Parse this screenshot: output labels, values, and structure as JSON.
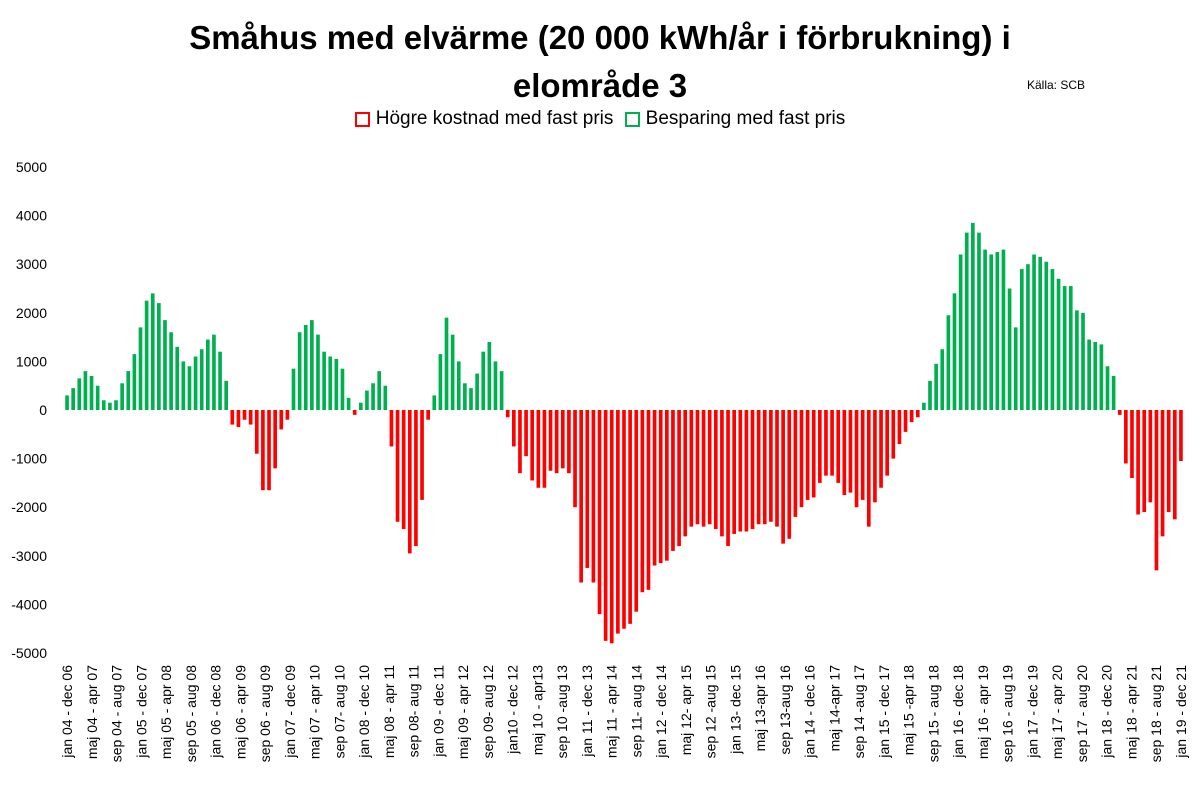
{
  "title_line1": "Småhus med elvärme (20 000 kWh/år i förbrukning) i",
  "title_line2": "elområde 3",
  "source": "Källa: SCB",
  "legend": [
    {
      "label": "Högre kostnad med fast pris",
      "color": "#ff0000"
    },
    {
      "label": "Besparing med fast pris",
      "color": "#00b050"
    }
  ],
  "colors": {
    "negative": "#ff0000",
    "positive": "#00b050"
  },
  "chart_data": {
    "type": "bar",
    "title": "Småhus med elvärme (20 000 kWh/år i förbrukning) i elområde 3",
    "ylim": [
      -5000,
      5000
    ],
    "yticks": [
      5000,
      4000,
      3000,
      2000,
      1000,
      0,
      -1000,
      -2000,
      -3000,
      -4000,
      -5000
    ],
    "grid": false,
    "legend_position": "top",
    "xtick_labels": [
      "jan 04 - dec 06",
      "maj 04 - apr 07",
      "sep 04 - aug 07",
      "jan 05 - dec 07",
      "maj 05 - apr 08",
      "sep 05 - aug 08",
      "jan 06 - dec 08",
      "maj 06 - apr 09",
      "sep 06 - aug 09",
      "jan 07 - dec 09",
      "maj 07 - apr 10",
      "sep 07- aug 10",
      "jan 08 - dec 10",
      "maj 08 - apr 11",
      "sep 08- aug 11",
      "jan 09 - dec 11",
      "maj 09 - apr 12",
      "sep 09- aug 12",
      "jan10 - dec 12",
      "maj 10 - apr13",
      "sep 10 -aug 13",
      "jan 11 - dec 13",
      "maj 11 - apr 14",
      "sep 11- aug 14",
      "jan 12 - dec 14",
      "maj 12- apr 15",
      "sep 12 -aug 15",
      "jan 13- dec 15",
      "maj 13-apr 16",
      "sep 13-aug 16",
      "jan 14 - dec 16",
      "maj 14-apr 17",
      "sep 14 -aug 17",
      "jan 15 - dec 17",
      "maj 15 -apr 18",
      "sep 15 - aug 18",
      "jan 16 - dec 18",
      "maj 16 - apr 19",
      "sep 16 - aug 19",
      "jan 17 - dec 19",
      "maj 17 - apr 20",
      "sep 17 - aug 20",
      "jan 18 - dec 20",
      "maj 18 - apr 21",
      "sep 18 - aug 21",
      "jan 19 - dec 21"
    ],
    "values": [
      300,
      450,
      650,
      800,
      700,
      500,
      200,
      150,
      200,
      550,
      800,
      1150,
      1700,
      2250,
      2400,
      2200,
      1850,
      1600,
      1300,
      1000,
      900,
      1100,
      1250,
      1450,
      1550,
      1200,
      600,
      -300,
      -350,
      -200,
      -300,
      -900,
      -1650,
      -1650,
      -1200,
      -400,
      -200,
      850,
      1600,
      1750,
      1850,
      1550,
      1200,
      1100,
      1050,
      850,
      250,
      -100,
      150,
      400,
      550,
      800,
      500,
      -750,
      -2300,
      -2450,
      -2950,
      -2800,
      -1850,
      -200,
      300,
      1150,
      1900,
      1550,
      1000,
      550,
      450,
      750,
      1200,
      1400,
      1000,
      800,
      -150,
      -750,
      -1300,
      -950,
      -1450,
      -1600,
      -1600,
      -1250,
      -1300,
      -1200,
      -1300,
      -2000,
      -3550,
      -3250,
      -3550,
      -4200,
      -4750,
      -4800,
      -4600,
      -4500,
      -4400,
      -4150,
      -3750,
      -3700,
      -3200,
      -3150,
      -3100,
      -2900,
      -2800,
      -2600,
      -2400,
      -2350,
      -2400,
      -2350,
      -2450,
      -2600,
      -2800,
      -2550,
      -2500,
      -2500,
      -2450,
      -2350,
      -2350,
      -2300,
      -2400,
      -2750,
      -2650,
      -2200,
      -2000,
      -1850,
      -1800,
      -1500,
      -1350,
      -1350,
      -1500,
      -1750,
      -1700,
      -2000,
      -1850,
      -2400,
      -1900,
      -1600,
      -1350,
      -1000,
      -700,
      -450,
      -250,
      -150,
      150,
      600,
      950,
      1250,
      1950,
      2400,
      3200,
      3650,
      3850,
      3650,
      3300,
      3200,
      3250,
      3300,
      2500,
      1700,
      2900,
      3000,
      3200,
      3150,
      3050,
      2900,
      2700,
      2550,
      2550,
      2050,
      2000,
      1450,
      1400,
      1350,
      900,
      700,
      -100,
      -1100,
      -1400,
      -2150,
      -2100,
      -1900,
      -3300,
      -2600,
      -2100,
      -2250,
      -1050
    ]
  }
}
